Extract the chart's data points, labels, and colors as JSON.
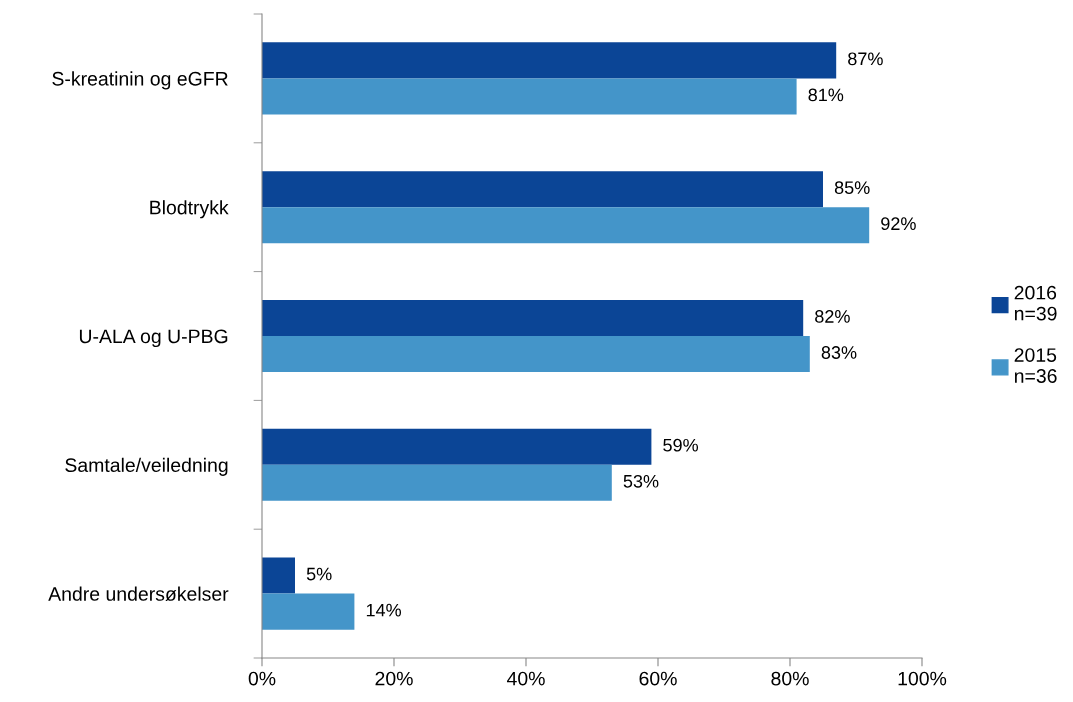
{
  "chart_data": {
    "type": "bar",
    "orientation": "horizontal",
    "categories": [
      "S-kreatinin og eGFR",
      "Blodtrykk",
      "U-ALA og U-PBG",
      "Samtale/veiledning",
      "Andre undersøkelser"
    ],
    "series": [
      {
        "name": "2016\nn=39",
        "color": "#0b4596",
        "values": [
          87,
          85,
          82,
          59,
          5
        ],
        "value_labels": [
          "87%",
          "85%",
          "82%",
          "59%",
          "5%"
        ]
      },
      {
        "name": "2015\nn=36",
        "color": "#4495c9",
        "values": [
          81,
          92,
          83,
          53,
          14
        ],
        "value_labels": [
          "81%",
          "92%",
          "83%",
          "53%",
          "14%"
        ]
      }
    ],
    "xlim": [
      0,
      100
    ],
    "xticks": [
      {
        "value": 0,
        "label": "0%"
      },
      {
        "value": 20,
        "label": "20%"
      },
      {
        "value": 40,
        "label": "40%"
      },
      {
        "value": 60,
        "label": "60%"
      },
      {
        "value": 80,
        "label": "80%"
      },
      {
        "value": 100,
        "label": "100%"
      }
    ],
    "grid": false,
    "legend": "right"
  }
}
